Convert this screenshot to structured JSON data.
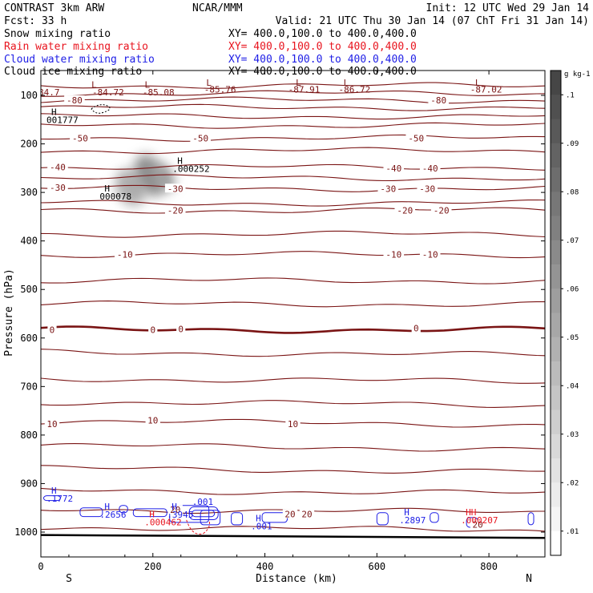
{
  "header": {
    "left": [
      "CONTRAST  3km ARW",
      "Fcst:   33 h"
    ],
    "center": "NCAR/MMM",
    "init": "Init: 12 UTC Wed 29 Jan 14",
    "valid": "Valid: 21 UTC Thu 30 Jan 14 (07 ChT Fri 31 Jan 14)"
  },
  "fields": [
    {
      "name": "Snow mixing ratio",
      "xy": "XY= 400.0,100.0 to 400.0,400.0",
      "color": "#000000"
    },
    {
      "name": "Rain water mixing ratio",
      "xy": "XY= 400.0,100.0 to 400.0,400.0",
      "color": "#e8141e"
    },
    {
      "name": "Cloud water mixing ratio",
      "xy": "XY= 400.0,100.0 to 400.0,400.0",
      "color": "#1e1ee6"
    },
    {
      "name": "Cloud ice mixing ratio",
      "xy": "XY= 400.0,100.0 to 400.0,400.0",
      "color": "#000000"
    }
  ],
  "colors": {
    "temperature": "#7a1414",
    "rain": "#e8141e",
    "cloud": "#1e1ee6",
    "axis": "#000000"
  },
  "chart_data": {
    "type": "contour-cross-section",
    "xlabel": "Distance (km)",
    "ylabel": "Pressure (hPa)",
    "xlim": [
      0,
      900
    ],
    "ylim": [
      1050,
      75
    ],
    "xticks": [
      0,
      200,
      400,
      600,
      800
    ],
    "yticks": [
      100,
      200,
      300,
      400,
      500,
      600,
      700,
      800,
      900,
      1000
    ],
    "end_labels": {
      "left": "S",
      "right": "N"
    },
    "colorbar": {
      "units": "g kg-1",
      "ticks": [
        "0.1",
        ".09",
        ".08",
        ".07",
        ".06",
        ".05",
        ".04",
        ".03",
        ".02",
        ".01"
      ],
      "ticks_display": [
        ".1",
        ".09",
        ".08",
        ".07",
        ".06",
        ".05",
        ".04",
        ".03",
        ".02",
        ".01"
      ],
      "tick_values": [
        0.1,
        0.09,
        0.08,
        0.07,
        0.06,
        0.05,
        0.04,
        0.03,
        0.02,
        0.01
      ],
      "range": [
        0.005,
        0.105
      ]
    },
    "isotherm_labels": [
      {
        "text": "-80",
        "x": 60,
        "p": 110
      },
      {
        "text": "-80",
        "x": 710,
        "p": 110
      },
      {
        "text": "-50",
        "x": 70,
        "p": 188
      },
      {
        "text": "-50",
        "x": 285,
        "p": 188
      },
      {
        "text": "-50",
        "x": 670,
        "p": 188
      },
      {
        "text": "-40",
        "x": 30,
        "p": 248
      },
      {
        "text": "-40",
        "x": 630,
        "p": 250
      },
      {
        "text": "-40",
        "x": 695,
        "p": 250
      },
      {
        "text": "-30",
        "x": 30,
        "p": 290
      },
      {
        "text": "-30",
        "x": 240,
        "p": 292
      },
      {
        "text": "-30",
        "x": 620,
        "p": 292
      },
      {
        "text": "-30",
        "x": 690,
        "p": 292
      },
      {
        "text": "-20",
        "x": 240,
        "p": 337
      },
      {
        "text": "-20",
        "x": 650,
        "p": 337
      },
      {
        "text": "-20",
        "x": 715,
        "p": 337
      },
      {
        "text": "-10",
        "x": 150,
        "p": 428
      },
      {
        "text": "-10",
        "x": 630,
        "p": 428
      },
      {
        "text": "-10",
        "x": 695,
        "p": 428
      },
      {
        "text": "0",
        "x": 20,
        "p": 583
      },
      {
        "text": "0",
        "x": 200,
        "p": 583
      },
      {
        "text": "0",
        "x": 250,
        "p": 581
      },
      {
        "text": "0",
        "x": 670,
        "p": 580
      },
      {
        "text": "10",
        "x": 20,
        "p": 777
      },
      {
        "text": "10",
        "x": 200,
        "p": 770
      },
      {
        "text": "10",
        "x": 450,
        "p": 777
      },
      {
        "text": "20",
        "x": 240,
        "p": 954
      },
      {
        "text": "20",
        "x": 445,
        "p": 963
      },
      {
        "text": "20",
        "x": 475,
        "p": 963
      },
      {
        "text": "20",
        "x": 780,
        "p": 984
      }
    ],
    "isotherm_pressures": [
      80,
      96,
      110,
      125,
      143,
      162,
      188,
      214,
      248,
      270,
      292,
      322,
      337,
      386,
      428,
      482,
      530,
      583,
      632,
      687,
      735,
      775,
      825,
      872,
      917,
      956,
      993
    ],
    "freezing_level_index": 17,
    "low_labels": [
      {
        "id": "L",
        "x": 95,
        "p": 84
      },
      {
        "id": "-84.72",
        "x": 120,
        "p": 100
      },
      {
        "id": "L",
        "x": 190,
        "p": 84
      },
      {
        "id": "-85.08",
        "x": 210,
        "p": 100
      },
      {
        "id": "L",
        "x": 300,
        "p": 80
      },
      {
        "id": "-85.76",
        "x": 320,
        "p": 94
      },
      {
        "id": "L",
        "x": 460,
        "p": 80
      },
      {
        "id": "-87.91",
        "x": 470,
        "p": 94
      },
      {
        "id": "L",
        "x": 545,
        "p": 80
      },
      {
        "id": "-86.72",
        "x": 560,
        "p": 94
      },
      {
        "id": "L",
        "x": 780,
        "p": 80
      },
      {
        "id": "-87.02",
        "x": 795,
        "p": 94
      },
      {
        "id": "-84.7",
        "x": 10,
        "p": 100
      }
    ],
    "maxima_labels": [
      {
        "h": "H",
        "value": "001777",
        "x": 10,
        "p": 157,
        "color": "#000000"
      },
      {
        "h": "H",
        "value": ".000252",
        "x": 235,
        "p": 258,
        "color": "#000000"
      },
      {
        "h": "H",
        "value": "000078",
        "x": 105,
        "p": 315,
        "color": "#000000"
      },
      {
        "h": "H",
        "value": ".1772",
        "x": 10,
        "p": 937,
        "color": "#1e1ee6"
      },
      {
        "h": "H",
        "value": ".2656",
        "x": 105,
        "p": 970,
        "color": "#1e1ee6"
      },
      {
        "h": "H",
        "value": ".3945",
        "x": 225,
        "p": 970,
        "color": "#1e1ee6"
      },
      {
        "h": "H",
        "value": ".000462",
        "x": 185,
        "p": 986,
        "color": "#e8141e"
      },
      {
        "h": "H",
        "value": ".001",
        "x": 375,
        "p": 994,
        "color": "#1e1ee6"
      },
      {
        "h": "H",
        "value": ".2897",
        "x": 640,
        "p": 982,
        "color": "#1e1ee6"
      },
      {
        "h": "HH",
        "value": ".000207",
        "x": 750,
        "p": 982,
        "color": "#e8141e"
      },
      {
        "h": "",
        "value": ".001",
        "x": 270,
        "p": 944,
        "color": "#1e1ee6"
      }
    ],
    "snow_blobs": [
      {
        "x": 160,
        "p": 290,
        "rx": 18,
        "rp": 40,
        "intensity": 0.05
      },
      {
        "x": 195,
        "p": 265,
        "rx": 18,
        "rp": 45,
        "intensity": 0.07
      },
      {
        "x": 220,
        "p": 270,
        "rx": 12,
        "rp": 30,
        "intensity": 0.06
      }
    ]
  }
}
